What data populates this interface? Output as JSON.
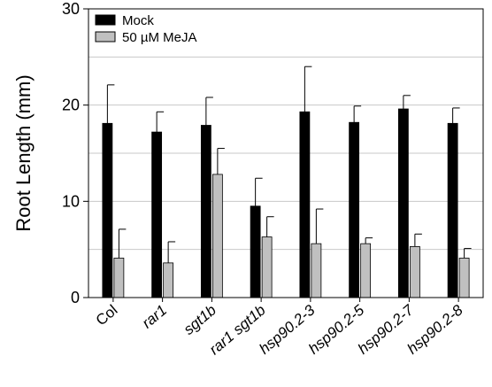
{
  "chart_data": {
    "type": "bar",
    "ylabel": "Root Length (mm)",
    "ylim": [
      0,
      30
    ],
    "yticks": [
      "0",
      "10",
      "20",
      "30"
    ],
    "grid": "horizontal",
    "legend_position": "top-left",
    "categories": [
      "Col",
      "rar1",
      "sgt1b",
      "rar1 sgt1b",
      "hsp90.2-3",
      "hsp90.2-5",
      "hsp90.2-7",
      "hsp90.2-8"
    ],
    "series": [
      {
        "name": "Mock",
        "color": "#000000",
        "values": [
          18.1,
          17.2,
          17.9,
          9.5,
          19.3,
          18.2,
          19.6,
          18.1
        ],
        "errors": [
          4.0,
          2.1,
          2.9,
          2.9,
          4.7,
          1.7,
          1.4,
          1.6
        ]
      },
      {
        "name": "50 µM MeJA",
        "color": "#c0c0c0",
        "values": [
          4.1,
          3.6,
          12.8,
          6.3,
          5.6,
          5.6,
          5.3,
          4.1
        ],
        "errors": [
          3.0,
          2.2,
          2.7,
          2.1,
          3.6,
          0.6,
          1.3,
          1.0
        ]
      }
    ]
  }
}
